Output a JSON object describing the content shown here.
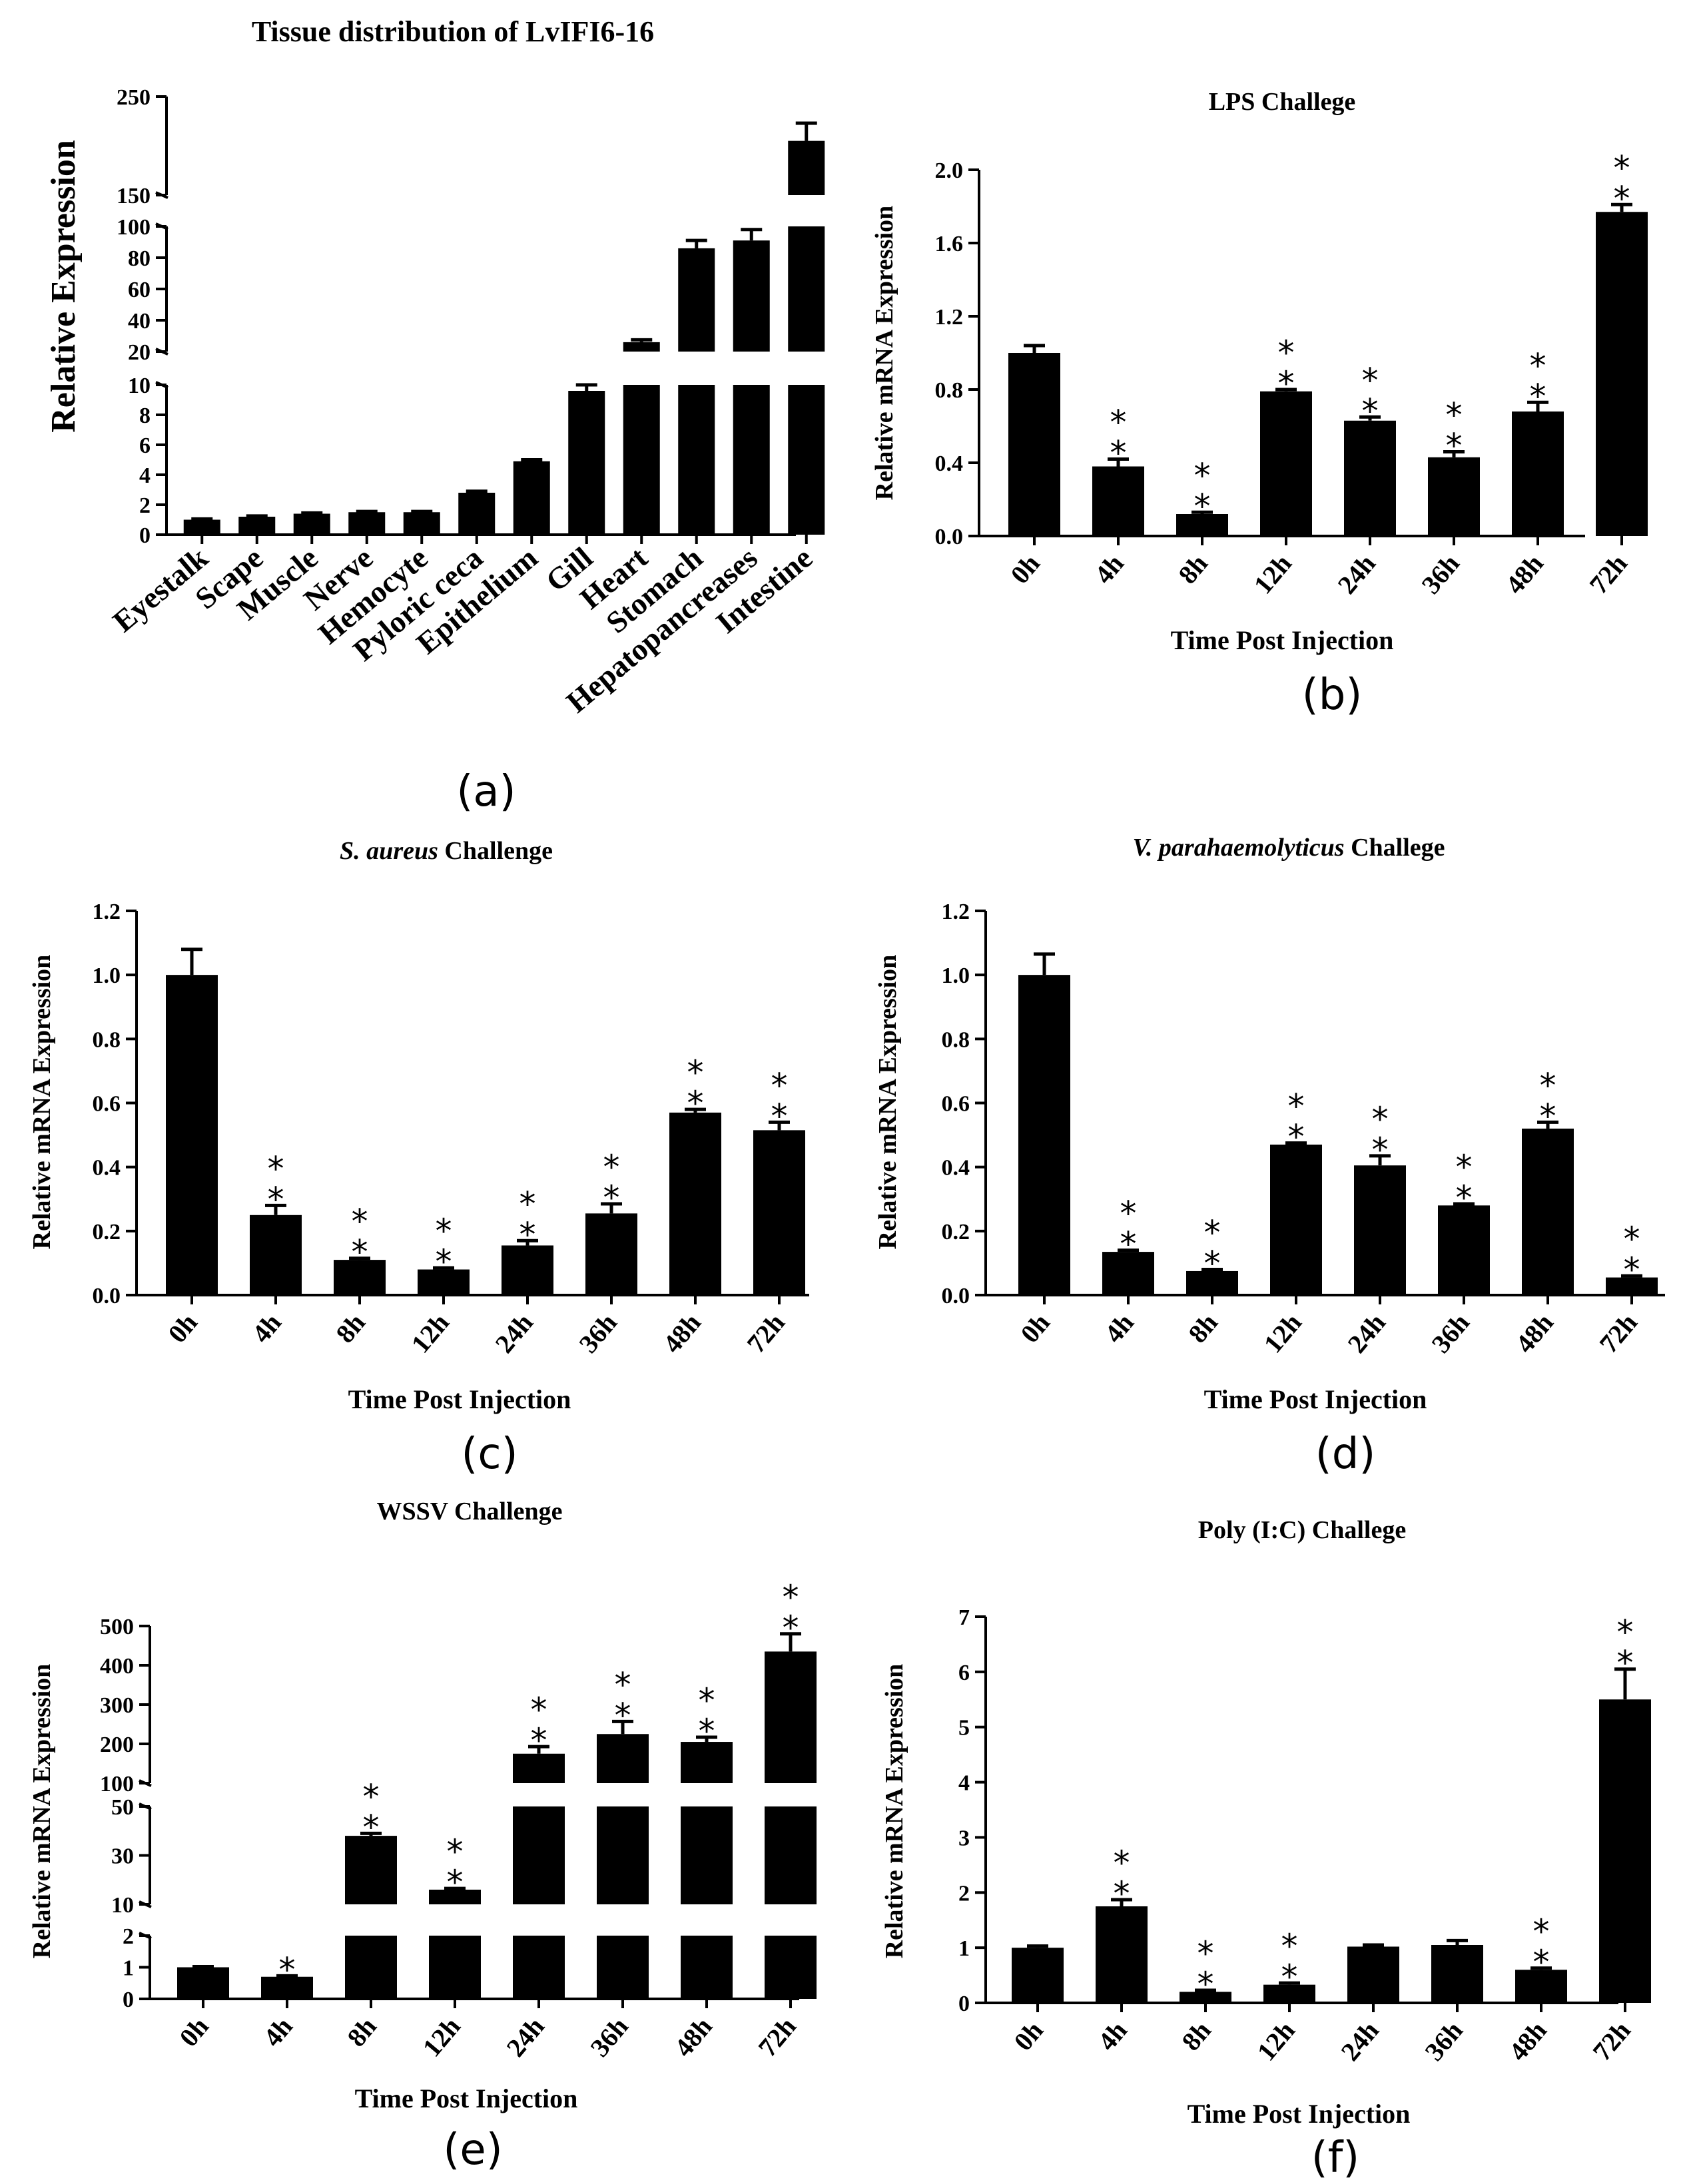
{
  "chart_data": [
    {
      "panel": "(a)",
      "type": "bar",
      "title": "Tissue distribution of LvIFI6-16",
      "title_style": "normal",
      "xlabel": "",
      "ylabel": "Relative Expression",
      "categories": [
        "Eyestalk",
        "Scape",
        "Muscle",
        "Nerve",
        "Hemocyte",
        "Pyloric ceca",
        "Epithelium",
        "Gill",
        "Heart",
        "Stomach",
        "Hepatopancreases",
        "Intestine"
      ],
      "values": [
        1.0,
        1.2,
        1.4,
        1.5,
        1.5,
        2.8,
        4.9,
        9.6,
        26,
        86,
        91,
        205
      ],
      "errors": [
        0.05,
        0.05,
        0.05,
        0.05,
        0.05,
        0.1,
        0.1,
        0.4,
        1.5,
        5,
        7,
        18
      ],
      "significance": [
        "",
        "",
        "",
        "",
        "",
        "",
        "",
        "",
        "",
        "",
        "",
        ""
      ],
      "y_segments": [
        {
          "range": [
            0,
            10
          ],
          "ticks": [
            0,
            2,
            4,
            6,
            8,
            10
          ]
        },
        {
          "range": [
            20,
            100
          ],
          "ticks": [
            20,
            40,
            60,
            80,
            100
          ]
        },
        {
          "range": [
            150,
            250
          ],
          "ticks": [
            150,
            250
          ]
        }
      ]
    },
    {
      "panel": "(b)",
      "type": "bar",
      "title": "LPS Challege",
      "title_style": "normal",
      "xlabel": "Time Post Injection",
      "ylabel": "Relative mRNA Expression",
      "categories": [
        "0h",
        "4h",
        "8h",
        "12h",
        "24h",
        "36h",
        "48h",
        "72h"
      ],
      "values": [
        1.0,
        0.38,
        0.12,
        0.79,
        0.63,
        0.43,
        0.68,
        1.77
      ],
      "errors": [
        0.04,
        0.04,
        0.01,
        0.01,
        0.02,
        0.03,
        0.05,
        0.04
      ],
      "significance": [
        "",
        "**",
        "**",
        "**",
        "**",
        "**",
        "**",
        "**"
      ],
      "y_segments": [
        {
          "range": [
            0,
            2.0
          ],
          "ticks": [
            0,
            0.4,
            0.8,
            1.2,
            1.6,
            2.0
          ],
          "tick_labels": [
            "0.0",
            "0.4",
            "0.8",
            "1.2",
            "1.6",
            "2.0"
          ]
        }
      ]
    },
    {
      "panel": "(c)",
      "type": "bar",
      "title": "Challenge",
      "title_italic": "S. aureus",
      "title_style": "italic-prefix",
      "xlabel": "Time Post Injection",
      "ylabel": "Relative mRNA Expression",
      "categories": [
        "0h",
        "4h",
        "8h",
        "12h",
        "24h",
        "36h",
        "48h",
        "72h"
      ],
      "values": [
        1.0,
        0.25,
        0.11,
        0.08,
        0.155,
        0.255,
        0.57,
        0.515
      ],
      "errors": [
        0.08,
        0.03,
        0.005,
        0.005,
        0.015,
        0.03,
        0.01,
        0.025
      ],
      "significance": [
        "",
        "**",
        "**",
        "**",
        "**",
        "**",
        "**",
        "**"
      ],
      "y_segments": [
        {
          "range": [
            0,
            1.2
          ],
          "ticks": [
            0,
            0.2,
            0.4,
            0.6,
            0.8,
            1.0,
            1.2
          ],
          "tick_labels": [
            "0.0",
            "0.2",
            "0.4",
            "0.6",
            "0.8",
            "1.0",
            "1.2"
          ]
        }
      ]
    },
    {
      "panel": "(d)",
      "type": "bar",
      "title": "Challege",
      "title_italic": "V. parahaemolyticus",
      "title_style": "italic-prefix",
      "xlabel": "Time Post Injection",
      "ylabel": "Relative mRNA Expression",
      "categories": [
        "0h",
        "4h",
        "8h",
        "12h",
        "24h",
        "36h",
        "48h",
        "72h"
      ],
      "values": [
        1.0,
        0.135,
        0.075,
        0.47,
        0.405,
        0.28,
        0.52,
        0.055
      ],
      "errors": [
        0.065,
        0.005,
        0.005,
        0.005,
        0.03,
        0.005,
        0.02,
        0.005
      ],
      "significance": [
        "",
        "**",
        "**",
        "**",
        "**",
        "**",
        "**",
        "**"
      ],
      "y_segments": [
        {
          "range": [
            0,
            1.2
          ],
          "ticks": [
            0,
            0.2,
            0.4,
            0.6,
            0.8,
            1.0,
            1.2
          ],
          "tick_labels": [
            "0.0",
            "0.2",
            "0.4",
            "0.6",
            "0.8",
            "1.0",
            "1.2"
          ]
        }
      ]
    },
    {
      "panel": "(e)",
      "type": "bar",
      "title": "WSSV Challenge",
      "title_style": "normal",
      "xlabel": "Time Post Injection",
      "ylabel": "Relative mRNA Expression",
      "categories": [
        "0h",
        "4h",
        "8h",
        "12h",
        "24h",
        "36h",
        "48h",
        "72h"
      ],
      "values": [
        1.0,
        0.7,
        38,
        16,
        175,
        225,
        205,
        435
      ],
      "errors": [
        0.02,
        0.03,
        1,
        0.5,
        18,
        32,
        12,
        45
      ],
      "significance": [
        "",
        "*",
        "**",
        "**",
        "**",
        "**",
        "**",
        "**"
      ],
      "y_segments": [
        {
          "range": [
            0,
            2
          ],
          "ticks": [
            0,
            1,
            2
          ]
        },
        {
          "range": [
            10,
            50
          ],
          "ticks": [
            10,
            30,
            50
          ]
        },
        {
          "range": [
            100,
            500
          ],
          "ticks": [
            100,
            200,
            300,
            400,
            500
          ]
        }
      ]
    },
    {
      "panel": "(f)",
      "type": "bar",
      "title": "Poly (I:C) Challege",
      "title_style": "normal",
      "xlabel": "Time Post Injection",
      "ylabel": "Relative mRNA Expression",
      "categories": [
        "0h",
        "4h",
        "8h",
        "12h",
        "24h",
        "36h",
        "48h",
        "72h"
      ],
      "values": [
        1.0,
        1.75,
        0.2,
        0.33,
        1.02,
        1.05,
        0.6,
        5.5
      ],
      "errors": [
        0.03,
        0.12,
        0.03,
        0.03,
        0.03,
        0.08,
        0.03,
        0.55
      ],
      "significance": [
        "",
        "**",
        "**",
        "**",
        "",
        "",
        "**",
        "**"
      ],
      "y_segments": [
        {
          "range": [
            0,
            7
          ],
          "ticks": [
            0,
            1,
            2,
            3,
            4,
            5,
            6,
            7
          ]
        }
      ]
    }
  ]
}
